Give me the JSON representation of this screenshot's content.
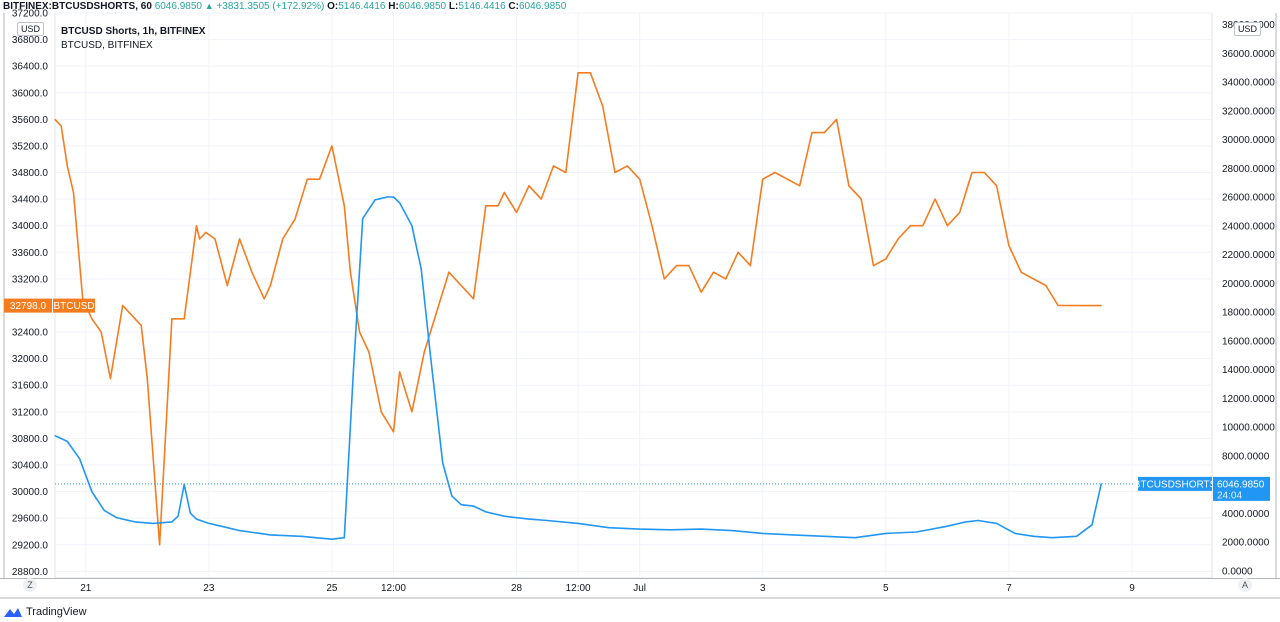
{
  "header": {
    "symbol": "BITFINEX:BTCUSDSHORTS, 60",
    "last": "6046.9850",
    "arrow": "▲",
    "change": "+3831.3505 (+172.92%)",
    "o_label": "O:",
    "o": "5146.4416",
    "h_label": "H:",
    "h": "6046.9850",
    "l_label": "L:",
    "l": "5146.4416",
    "c_label": "C:",
    "c": "6046.9850"
  },
  "legend": {
    "line1": "BTCUSD Shorts, 1h, BITFINEX",
    "line2": "BTCUSD, BITFINEX"
  },
  "axes": {
    "left_unit": "USD",
    "right_unit": "USD",
    "corner_left": "Z",
    "corner_right": "A"
  },
  "footer": {
    "brand": "TradingView"
  },
  "chart_data": {
    "type": "line",
    "x_ticks": [
      "21",
      "23",
      "25",
      "12:00",
      "28",
      "12:00",
      "Jul",
      "3",
      "5",
      "7",
      "9"
    ],
    "x_tick_pos": [
      0.5,
      2.5,
      4.5,
      5.5,
      7.5,
      8.5,
      9.5,
      11.5,
      13.5,
      15.5,
      17.5
    ],
    "left_axis": {
      "ylim": [
        28700,
        37200
      ],
      "ticks": [
        "37200.0",
        "36800.0",
        "36400.0",
        "36000.0",
        "35600.0",
        "35200.0",
        "34800.0",
        "34400.0",
        "34000.0",
        "33600.0",
        "33200.0",
        "32400.0",
        "32000.0",
        "31600.0",
        "31200.0",
        "30800.0",
        "30400.0",
        "30000.0",
        "29600.0",
        "29200.0",
        "28800.0"
      ],
      "tick_values": [
        37200,
        36800,
        36400,
        36000,
        35600,
        35200,
        34800,
        34400,
        34000,
        33600,
        33200,
        32400,
        32000,
        31600,
        31200,
        30800,
        30400,
        30000,
        29600,
        29200,
        28800
      ]
    },
    "right_axis": {
      "ylim": [
        -500,
        38800
      ],
      "ticks": [
        "38000.0000",
        "36000.0000",
        "34000.0000",
        "32000.0000",
        "30000.0000",
        "28000.0000",
        "26000.0000",
        "24000.0000",
        "22000.0000",
        "20000.0000",
        "18000.0000",
        "16000.0000",
        "14000.0000",
        "12000.0000",
        "10000.0000",
        "8000.0000",
        "4000.0000",
        "2000.0000",
        "0.0000"
      ],
      "tick_values": [
        38000,
        36000,
        34000,
        32000,
        30000,
        28000,
        26000,
        24000,
        22000,
        20000,
        18000,
        16000,
        14000,
        12000,
        10000,
        8000,
        4000,
        2000,
        0
      ]
    },
    "series": [
      {
        "name": "BTCUSD",
        "axis": "left",
        "color": "#f57c1f",
        "last_label": "32798.0",
        "badge": "BTCUSD",
        "x": [
          0,
          0.1,
          0.2,
          0.3,
          0.45,
          0.6,
          0.75,
          0.9,
          1.1,
          1.3,
          1.4,
          1.5,
          1.7,
          1.9,
          2.1,
          2.2,
          2.3,
          2.35,
          2.45,
          2.6,
          2.8,
          3.0,
          3.2,
          3.4,
          3.5,
          3.7,
          3.9,
          4.1,
          4.3,
          4.5,
          4.7,
          4.8,
          4.95,
          5.1,
          5.3,
          5.5,
          5.6,
          5.8,
          6.0,
          6.2,
          6.4,
          6.6,
          6.8,
          7.0,
          7.2,
          7.3,
          7.5,
          7.7,
          7.9,
          8.1,
          8.3,
          8.5,
          8.7,
          8.9,
          9.1,
          9.3,
          9.5,
          9.7,
          9.9,
          10.1,
          10.3,
          10.5,
          10.7,
          10.9,
          11.1,
          11.3,
          11.5,
          11.7,
          11.9,
          12.1,
          12.3,
          12.5,
          12.7,
          12.9,
          13.1,
          13.3,
          13.5,
          13.7,
          13.9,
          14.1,
          14.3,
          14.5,
          14.7,
          14.9,
          15.1,
          15.3,
          15.5,
          15.7,
          15.9,
          16.1,
          16.3,
          16.5,
          16.7,
          16.9,
          17.0
        ],
        "values": [
          35600,
          35500,
          34900,
          34500,
          32900,
          32600,
          32400,
          31700,
          32800,
          32600,
          32500,
          31700,
          29200,
          32600,
          32600,
          33300,
          34000,
          33800,
          33900,
          33800,
          33100,
          33800,
          33300,
          32900,
          33100,
          33800,
          34100,
          34700,
          34700,
          35200,
          34300,
          33300,
          32400,
          32100,
          31200,
          30900,
          31800,
          31200,
          32100,
          32700,
          33300,
          33100,
          32900,
          34300,
          34300,
          34500,
          34200,
          34600,
          34400,
          34900,
          34800,
          36300,
          36300,
          35800,
          34800,
          34900,
          34700,
          34000,
          33200,
          33400,
          33400,
          33000,
          33300,
          33200,
          33600,
          33400,
          34700,
          34800,
          34700,
          34600,
          35400,
          35400,
          35600,
          34600,
          34400,
          33400,
          33500,
          33800,
          34000,
          34000,
          34400,
          34000,
          34200,
          34800,
          34800,
          34600,
          33700,
          33300,
          33200,
          33100,
          32800,
          32800,
          32798,
          32798,
          32798
        ]
      },
      {
        "name": "BTCUSD Shorts",
        "axis": "right",
        "color": "#2196f3",
        "last_label": "6046.9850",
        "badge": "BTCUSDSHORTS",
        "countdown": "24:04",
        "x": [
          0,
          0.2,
          0.4,
          0.6,
          0.8,
          1.0,
          1.3,
          1.6,
          1.9,
          2.0,
          2.1,
          2.2,
          2.3,
          2.5,
          2.7,
          3.0,
          3.5,
          4.0,
          4.5,
          4.7,
          4.85,
          5.0,
          5.2,
          5.4,
          5.5,
          5.6,
          5.7,
          5.8,
          5.95,
          6.1,
          6.3,
          6.45,
          6.6,
          6.8,
          7.0,
          7.3,
          7.7,
          8.0,
          8.5,
          9.0,
          9.5,
          10.0,
          10.5,
          11.0,
          11.5,
          12.0,
          12.5,
          13.0,
          13.5,
          14.0,
          14.5,
          14.8,
          15.0,
          15.3,
          15.6,
          15.9,
          16.2,
          16.6,
          16.85,
          17.0
        ],
        "values": [
          9400,
          9000,
          7800,
          5500,
          4200,
          3700,
          3400,
          3300,
          3400,
          3800,
          6000,
          4000,
          3600,
          3300,
          3100,
          2800,
          2500,
          2400,
          2200,
          2300,
          14000,
          24500,
          25800,
          26000,
          26000,
          25600,
          24800,
          24000,
          21000,
          15000,
          7500,
          5200,
          4600,
          4500,
          4100,
          3800,
          3600,
          3500,
          3300,
          3000,
          2900,
          2850,
          2900,
          2800,
          2600,
          2500,
          2400,
          2300,
          2600,
          2700,
          3100,
          3400,
          3500,
          3300,
          2600,
          2400,
          2300,
          2400,
          3200,
          6046.985
        ]
      }
    ],
    "grid": true
  }
}
